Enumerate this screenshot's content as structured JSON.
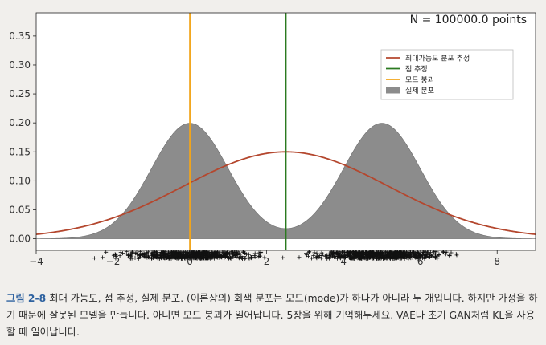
{
  "chart_data": {
    "type": "line",
    "title": "",
    "xlabel": "",
    "ylabel": "",
    "xlim": [
      -4,
      9
    ],
    "ylim": [
      -0.02,
      0.39
    ],
    "x_ticks": [
      -4,
      -2,
      0,
      2,
      4,
      6,
      8
    ],
    "y_ticks": [
      0.0,
      0.05,
      0.1,
      0.15,
      0.2,
      0.25,
      0.3,
      0.35
    ],
    "x_tick_labels": [
      "−4",
      "−2",
      "0",
      "2",
      "4",
      "6",
      "8"
    ],
    "y_tick_labels": [
      "0.00",
      "0.05",
      "0.10",
      "0.15",
      "0.20",
      "0.25",
      "0.30",
      "0.35"
    ],
    "annotation": "N = 100000.0 points",
    "grid": false,
    "legend_position": "upper-right",
    "series": [
      {
        "name": "최대가능도 분포 추정",
        "kind": "normal_curve",
        "mean": 2.5,
        "std": 2.66,
        "color": "#b4472e"
      },
      {
        "name": "점 추정",
        "kind": "vertical_line",
        "x": 2.5,
        "color": "#2b7a20"
      },
      {
        "name": "모드 붕괴",
        "kind": "vertical_line",
        "x": 0.0,
        "color": "#f2a51a"
      },
      {
        "name": "실제 분포",
        "kind": "mixture_area",
        "components": [
          {
            "mean": 0.0,
            "std": 1.0,
            "weight": 0.5
          },
          {
            "mean": 5.0,
            "std": 1.0,
            "weight": 0.5
          }
        ],
        "color": "#8c8c8c"
      }
    ],
    "samples": {
      "marker": "+",
      "clusters": [
        {
          "center": 0.0,
          "range": [
            -2.5,
            2.5
          ]
        },
        {
          "center": 5.0,
          "range": [
            2.5,
            7.0
          ]
        }
      ]
    }
  },
  "caption": {
    "label": "그림 2-8",
    "text": "최대 가능도, 점 추정, 실제 분포. (이론상의) 회색 분포는 모드(mode)가 하나가 아니라 두 개입니다. 하지만 가정을 하기 때문에 잘못된 모델을 만듭니다. 아니면 모드 붕괴가 일어납니다. 5장을 위해 기억해두세요. VAE나 초기 GAN처럼 KL을 사용할 때 일어납니다."
  }
}
